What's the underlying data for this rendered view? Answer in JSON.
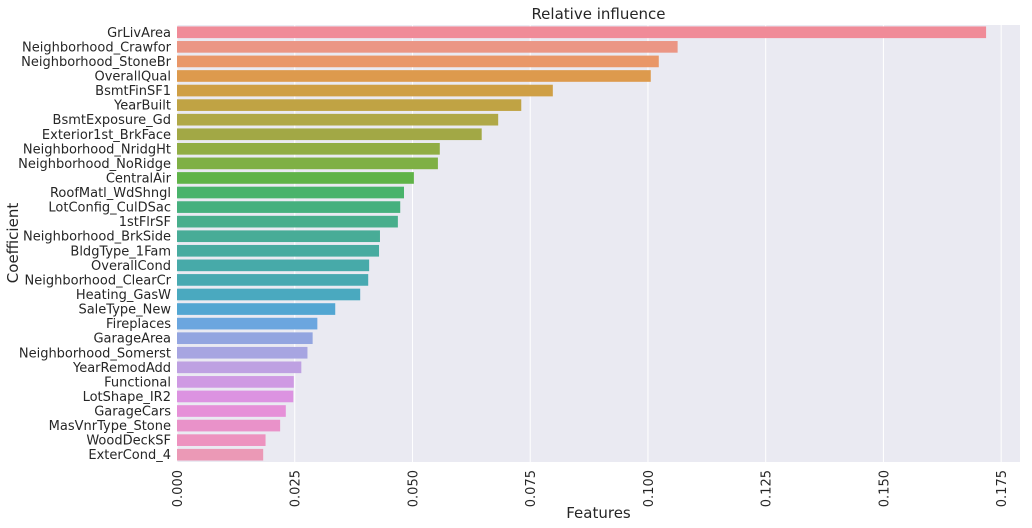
{
  "chart_data": {
    "type": "bar",
    "orientation": "horizontal",
    "title": "Relative influence",
    "xlabel": "Features",
    "ylabel": "Coefficient",
    "xlim": [
      0,
      0.179
    ],
    "xticks": [
      "0.000",
      "0.025",
      "0.050",
      "0.075",
      "0.100",
      "0.125",
      "0.150",
      "0.175"
    ],
    "xtick_values": [
      0,
      0.025,
      0.05,
      0.075,
      0.1,
      0.125,
      0.15,
      0.175
    ],
    "grid": true,
    "background": "#eaeaf2",
    "categories": [
      "GrLivArea",
      "Neighborhood_Crawfor",
      "Neighborhood_StoneBr",
      "OverallQual",
      "BsmtFinSF1",
      "YearBuilt",
      "BsmtExposure_Gd",
      "Exterior1st_BrkFace",
      "Neighborhood_NridgHt",
      "Neighborhood_NoRidge",
      "CentralAir",
      "RoofMatl_WdShngl",
      "LotConfig_CulDSac",
      "1stFlrSF",
      "Neighborhood_BrkSide",
      "BldgType_1Fam",
      "OverallCond",
      "Neighborhood_ClearCr",
      "Heating_GasW",
      "SaleType_New",
      "Fireplaces",
      "GarageArea",
      "Neighborhood_Somerst",
      "YearRemodAdd",
      "Functional",
      "LotShape_IR2",
      "GarageCars",
      "MasVnrType_Stone",
      "WoodDeckSF",
      "ExterCond_4"
    ],
    "values": [
      0.1718,
      0.1063,
      0.1023,
      0.1006,
      0.0798,
      0.0731,
      0.0682,
      0.0647,
      0.0558,
      0.0554,
      0.0503,
      0.0482,
      0.0474,
      0.0469,
      0.0431,
      0.0429,
      0.0408,
      0.0406,
      0.0389,
      0.0336,
      0.0298,
      0.0288,
      0.0277,
      0.0264,
      0.0248,
      0.0247,
      0.0231,
      0.0219,
      0.0188,
      0.0183
    ],
    "colors": [
      "#f08b98",
      "#eb9685",
      "#e99768",
      "#dd9a4d",
      "#cf9f45",
      "#c0a344",
      "#b0a847",
      "#a2a845",
      "#91ad44",
      "#7fb045",
      "#60b348",
      "#49b36b",
      "#46b07e",
      "#48ae8c",
      "#48ac97",
      "#48aba0",
      "#47aaa9",
      "#48a9b1",
      "#4aa9bf",
      "#52a6d2",
      "#6ba6df",
      "#93a5e0",
      "#a7a5e1",
      "#bea1e2",
      "#cf9ae3",
      "#dc93e1",
      "#e690d8",
      "#e992c9",
      "#ed92bf",
      "#eb99b6"
    ]
  }
}
